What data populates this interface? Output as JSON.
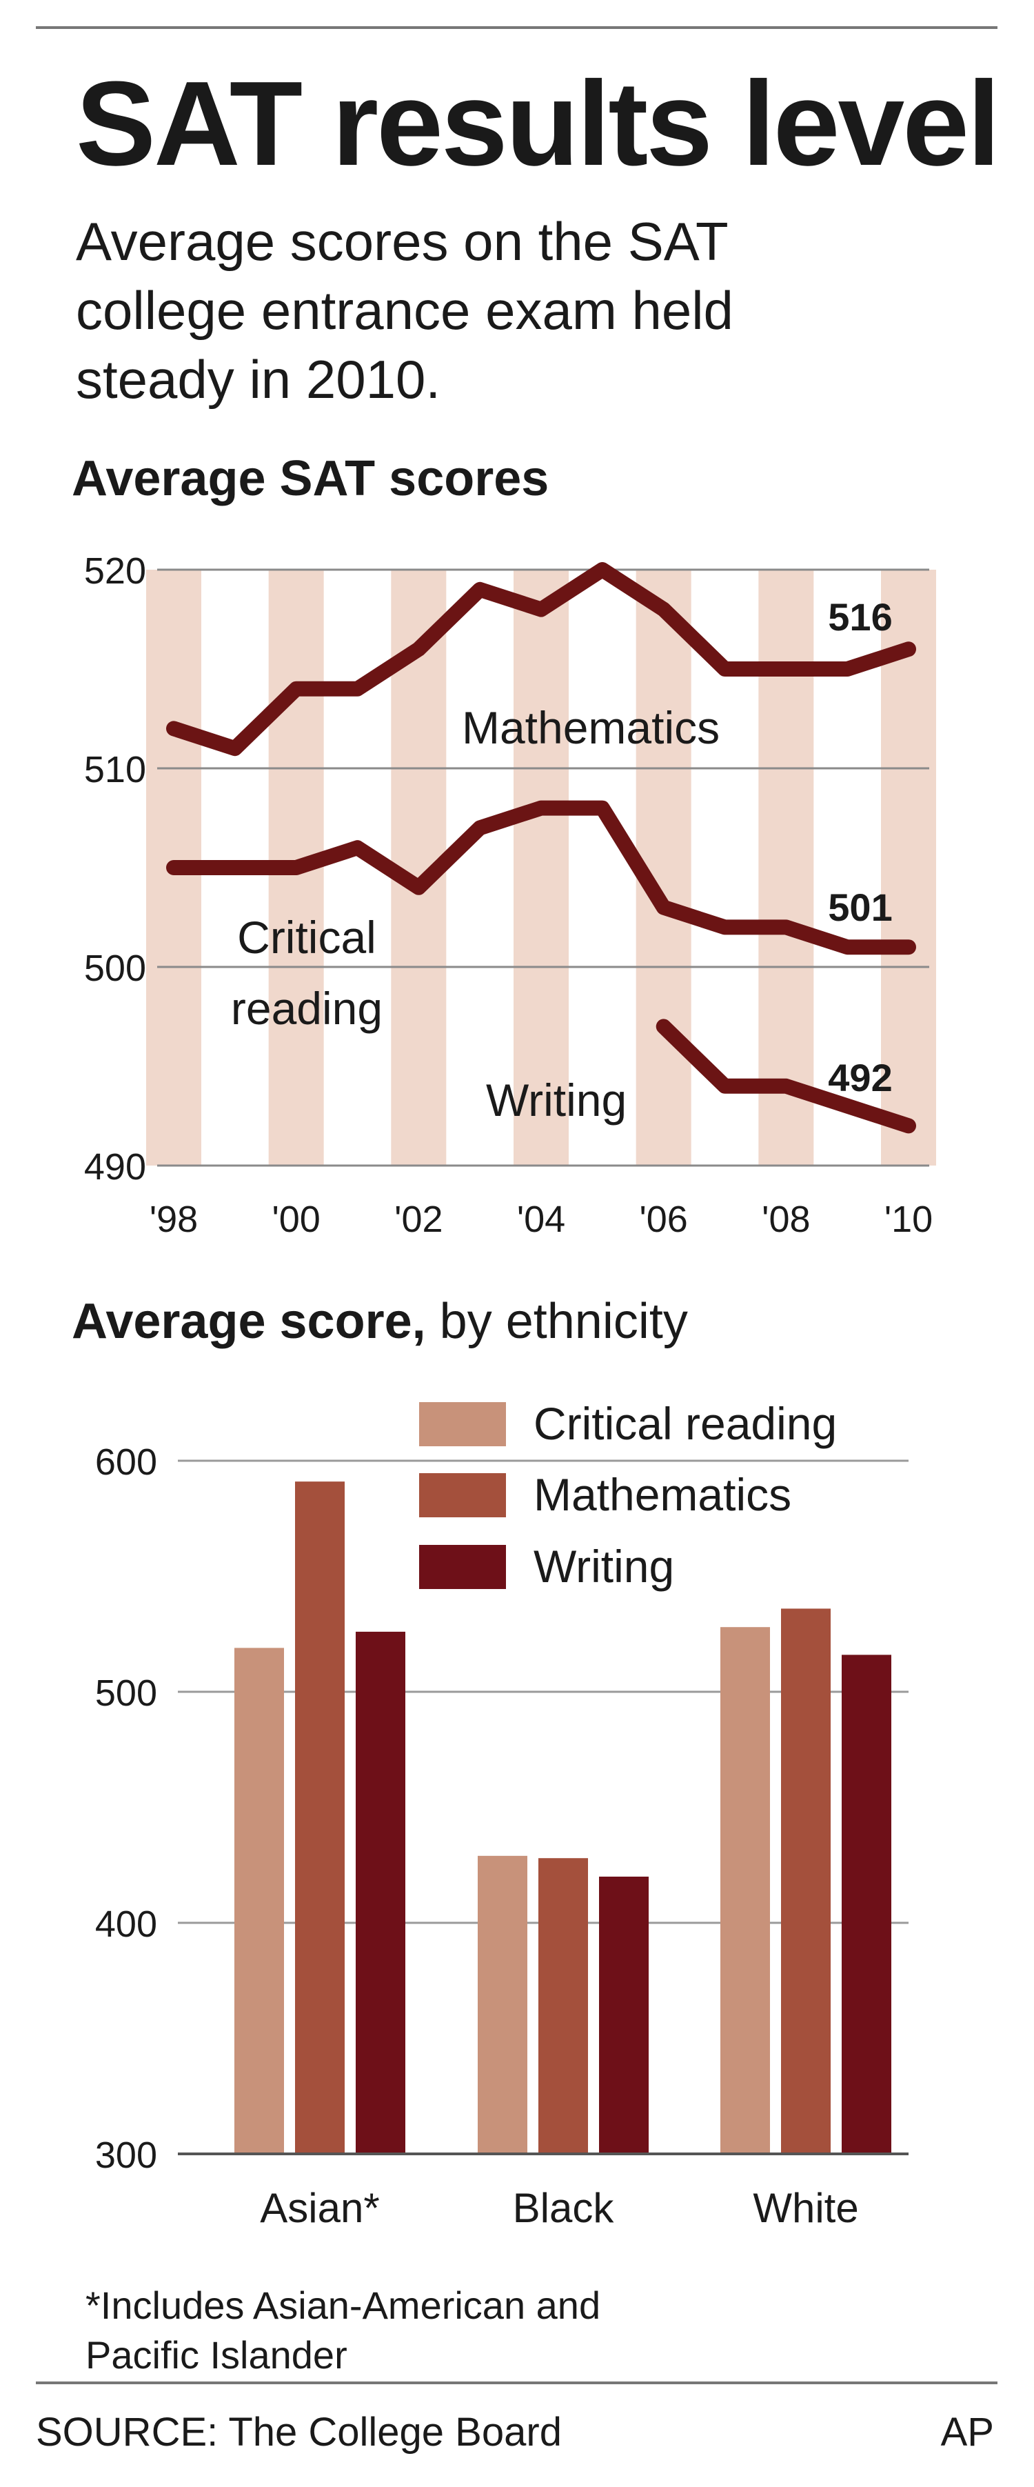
{
  "headline": "SAT results level",
  "dek": "Average scores on the SAT college entrance exam held steady in 2010.",
  "chart_data": [
    {
      "type": "line",
      "title": "Average SAT scores",
      "x_tick_labels": [
        "'98",
        "'00",
        "'02",
        "'04",
        "'06",
        "'08",
        "'10"
      ],
      "y_ticks": [
        490,
        500,
        510,
        520
      ],
      "ylim": [
        490,
        520
      ],
      "x": [
        1998,
        1999,
        2000,
        2001,
        2002,
        2003,
        2004,
        2005,
        2006,
        2007,
        2008,
        2009,
        2010
      ],
      "series": [
        {
          "name": "Mathematics",
          "values": [
            512,
            511,
            514,
            514,
            516,
            519,
            518,
            520,
            518,
            515,
            515,
            515,
            516
          ],
          "end_label": "516"
        },
        {
          "name": "Critical reading",
          "values": [
            505,
            505,
            505,
            506,
            504,
            507,
            508,
            508,
            503,
            502,
            502,
            501,
            501
          ],
          "end_label": "501"
        },
        {
          "name": "Writing",
          "values": [
            null,
            null,
            null,
            null,
            null,
            null,
            null,
            null,
            497,
            494,
            494,
            493,
            492
          ],
          "end_label": "492"
        }
      ],
      "color": "#6b1414",
      "band_color": "#f0d8cc",
      "grid": true
    },
    {
      "type": "bar",
      "title_bold": "Average score,",
      "title_rest": " by ethnicity",
      "categories": [
        "Asian*",
        "Black",
        "White"
      ],
      "y_ticks": [
        300,
        400,
        500,
        600
      ],
      "ylim": [
        300,
        600
      ],
      "series": [
        {
          "name": "Critical reading",
          "values": [
            519,
            429,
            528
          ],
          "color": "#c8927a"
        },
        {
          "name": "Mathematics",
          "values": [
            591,
            428,
            536
          ],
          "color": "#a4503c"
        },
        {
          "name": "Writing",
          "values": [
            526,
            420,
            516
          ],
          "color": "#6e1018"
        }
      ],
      "legend_position": "top-right",
      "grid": true
    }
  ],
  "footnote": "*Includes Asian-American and Pacific Islander",
  "source": "SOURCE: The College Board",
  "credit": "AP"
}
